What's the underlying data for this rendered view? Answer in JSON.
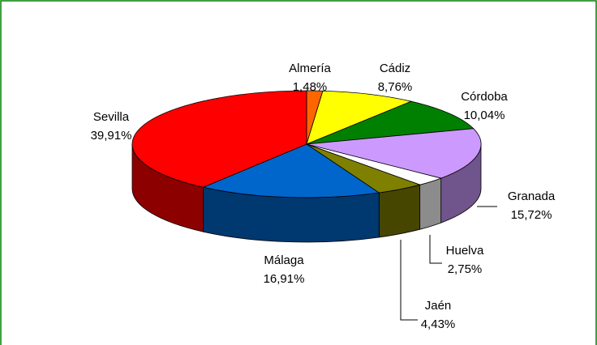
{
  "chart_data": {
    "type": "pie",
    "categories": [
      "Almería",
      "Cádiz",
      "Córdoba",
      "Granada",
      "Huelva",
      "Jaén",
      "Málaga",
      "Sevilla"
    ],
    "values": [
      1.48,
      8.76,
      10.04,
      15.72,
      2.75,
      4.43,
      16.91,
      39.91
    ],
    "value_labels": [
      "1,48%",
      "8,76%",
      "10,04%",
      "15,72%",
      "2,75%",
      "4,43%",
      "16,91%",
      "39,91%"
    ],
    "colors": [
      "#ff6600",
      "#ffff00",
      "#008000",
      "#cc99ff",
      "#ffffff",
      "#808000",
      "#0066cc",
      "#ff0000"
    ]
  }
}
